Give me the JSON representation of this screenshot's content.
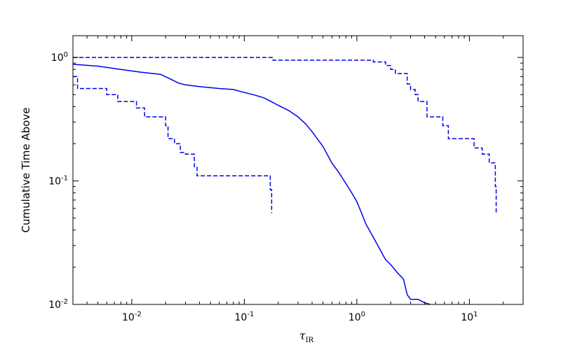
{
  "chart_data": {
    "type": "line",
    "xscale": "log",
    "yscale": "log",
    "xlim": [
      0.003,
      30
    ],
    "ylim": [
      0.01,
      1.5
    ],
    "xlabel": "τIR",
    "xlabel_main": "τ",
    "xlabel_sub": "IR",
    "ylabel": "Cumulative Time Above",
    "title": "",
    "grid": false,
    "legend": "none",
    "x_ticks": [
      {
        "value": 0.01,
        "base": "10",
        "exp": "-2"
      },
      {
        "value": 0.1,
        "base": "10",
        "exp": "-1"
      },
      {
        "value": 1,
        "base": "10",
        "exp": "0"
      },
      {
        "value": 10,
        "base": "10",
        "exp": "1"
      }
    ],
    "y_ticks": [
      {
        "value": 0.01,
        "base": "10",
        "exp": "-2"
      },
      {
        "value": 0.1,
        "base": "10",
        "exp": "-1"
      },
      {
        "value": 1,
        "base": "10",
        "exp": "0"
      }
    ],
    "color": "#0000ee",
    "series": [
      {
        "style": "solid",
        "x": [
          0.003,
          0.005,
          0.008,
          0.012,
          0.018,
          0.022,
          0.026,
          0.03,
          0.04,
          0.06,
          0.08,
          0.1,
          0.12,
          0.15,
          0.2,
          0.25,
          0.3,
          0.35,
          0.4,
          0.5,
          0.6,
          0.7,
          0.8,
          0.9,
          1.0,
          1.1,
          1.2,
          1.4,
          1.6,
          1.8,
          2.0,
          2.3,
          2.6,
          2.8,
          3.0,
          3.5,
          4.0,
          4.5
        ],
        "y": [
          0.88,
          0.85,
          0.8,
          0.76,
          0.73,
          0.67,
          0.62,
          0.6,
          0.58,
          0.56,
          0.55,
          0.52,
          0.5,
          0.47,
          0.41,
          0.37,
          0.33,
          0.29,
          0.25,
          0.19,
          0.14,
          0.115,
          0.095,
          0.08,
          0.068,
          0.055,
          0.045,
          0.035,
          0.028,
          0.023,
          0.021,
          0.018,
          0.016,
          0.012,
          0.011,
          0.011,
          0.0103,
          0.01
        ]
      },
      {
        "style": "dashed",
        "x": [
          0.003,
          0.0033,
          0.0033,
          0.006,
          0.006,
          0.0075,
          0.0075,
          0.011,
          0.011,
          0.013,
          0.013,
          0.02,
          0.02,
          0.021,
          0.021,
          0.024,
          0.024,
          0.027,
          0.027,
          0.03,
          0.03,
          0.036,
          0.036,
          0.038,
          0.038,
          0.17,
          0.17,
          0.175,
          0.175
        ],
        "y": [
          0.7,
          0.7,
          0.56,
          0.56,
          0.5,
          0.5,
          0.44,
          0.44,
          0.39,
          0.39,
          0.33,
          0.33,
          0.28,
          0.28,
          0.22,
          0.22,
          0.2,
          0.2,
          0.17,
          0.17,
          0.165,
          0.165,
          0.13,
          0.13,
          0.11,
          0.11,
          0.085,
          0.085,
          0.055
        ]
      },
      {
        "style": "dashed",
        "x": [
          0.003,
          0.18,
          0.18,
          1.4,
          1.4,
          1.8,
          1.8,
          2.0,
          2.0,
          2.2,
          2.2,
          2.8,
          2.8,
          3.0,
          3.0,
          3.3,
          3.3,
          3.5,
          3.5,
          4.2,
          4.2,
          5.8,
          5.8,
          6.5,
          6.5,
          11.0,
          11.0,
          13.0,
          13.0,
          15.0,
          15.0,
          17.0,
          17.0,
          17.3,
          17.3
        ],
        "y": [
          1.0,
          1.0,
          0.95,
          0.95,
          0.92,
          0.92,
          0.86,
          0.86,
          0.8,
          0.8,
          0.74,
          0.74,
          0.61,
          0.61,
          0.55,
          0.55,
          0.5,
          0.5,
          0.44,
          0.44,
          0.33,
          0.33,
          0.28,
          0.28,
          0.22,
          0.22,
          0.185,
          0.185,
          0.165,
          0.165,
          0.14,
          0.14,
          0.09,
          0.09,
          0.055
        ]
      }
    ]
  }
}
